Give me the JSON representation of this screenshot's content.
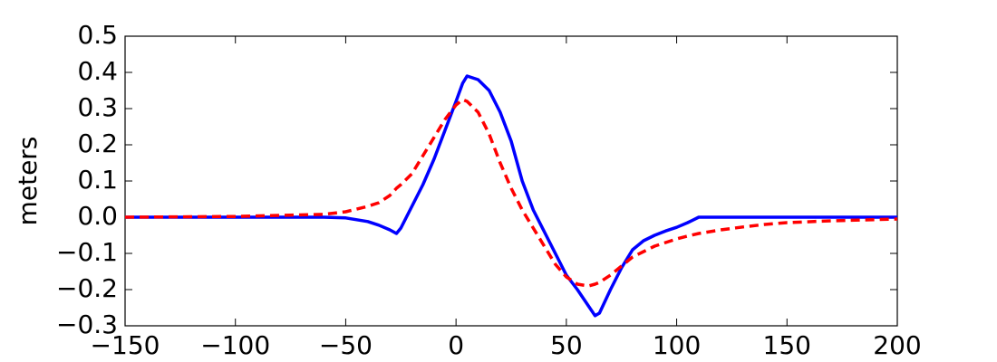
{
  "chart_data": {
    "type": "line",
    "ylabel": "meters",
    "x": [
      -150,
      -100,
      -60,
      -50,
      -40,
      -35,
      -30,
      -27,
      -25,
      -20,
      -15,
      -10,
      -5,
      0,
      3,
      5,
      10,
      15,
      20,
      25,
      30,
      35,
      40,
      45,
      50,
      55,
      60,
      63,
      65,
      70,
      75,
      80,
      85,
      90,
      95,
      100,
      105,
      110,
      120,
      130,
      140,
      150,
      170,
      200
    ],
    "series": [
      {
        "color": "#0000ff",
        "linestyle": "solid",
        "values": [
          0,
          0,
          0,
          -0.002,
          -0.012,
          -0.022,
          -0.035,
          -0.045,
          -0.03,
          0.03,
          0.09,
          0.16,
          0.24,
          0.32,
          0.37,
          0.39,
          0.38,
          0.35,
          0.29,
          0.21,
          0.1,
          0.02,
          -0.04,
          -0.1,
          -0.16,
          -0.2,
          -0.245,
          -0.272,
          -0.265,
          -0.2,
          -0.14,
          -0.09,
          -0.065,
          -0.05,
          -0.038,
          -0.028,
          -0.015,
          0,
          0,
          0,
          0,
          0,
          0,
          0
        ]
      },
      {
        "color": "#ff0000",
        "linestyle": "dashed",
        "values": [
          0,
          0.002,
          0.008,
          0.015,
          0.03,
          0.04,
          0.06,
          0.08,
          0.09,
          0.12,
          0.17,
          0.22,
          0.27,
          0.31,
          0.325,
          0.32,
          0.29,
          0.23,
          0.15,
          0.08,
          0.02,
          -0.03,
          -0.08,
          -0.13,
          -0.165,
          -0.185,
          -0.19,
          -0.185,
          -0.18,
          -0.16,
          -0.135,
          -0.11,
          -0.095,
          -0.08,
          -0.07,
          -0.06,
          -0.052,
          -0.045,
          -0.035,
          -0.027,
          -0.02,
          -0.015,
          -0.01,
          -0.005
        ]
      }
    ],
    "xlim": [
      -150,
      200
    ],
    "xticks": [
      {
        "value": -150,
        "label": "−150"
      },
      {
        "value": -100,
        "label": "−100"
      },
      {
        "value": -50,
        "label": "−50"
      },
      0,
      50,
      100,
      150,
      200
    ],
    "ylim": [
      -0.3,
      0.5
    ],
    "yticks": [
      {
        "value": -0.3,
        "label": "−0.3"
      },
      {
        "value": -0.2,
        "label": "−0.2"
      },
      {
        "value": -0.1,
        "label": "−0.1"
      },
      {
        "value": 0,
        "label": "0.0"
      },
      0.1,
      0.2,
      0.3,
      0.4,
      0.5
    ]
  }
}
